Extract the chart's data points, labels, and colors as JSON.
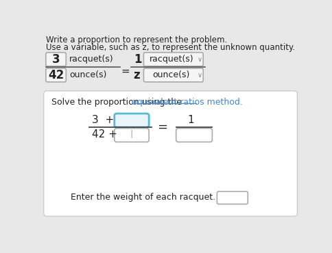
{
  "bg_color": "#e8e8e8",
  "bottom_section_bg": "#ffffff",
  "title_text1": "Write a proportion to represent the problem.",
  "title_text2": "Use a variable, such as z, to represent the unknown quantity.",
  "row1_left_num": "3",
  "row1_left_label": "racquet(s)",
  "row1_equals": "=",
  "row1_right_num": "1",
  "row1_right_label": "racquet(s)",
  "row2_left_num": "42",
  "row2_left_label": "ounce(s)",
  "row2_right_var": "z",
  "row2_right_label": "ounce(s)",
  "solve_text_plain": "Solve the proportion using the ",
  "solve_text_link": "equivalent ratios method.",
  "fraction_left_num": "3  +",
  "fraction_left_den": "42 +",
  "fraction_right_num": "1",
  "equals_sign": "=",
  "enter_text": "Enter the weight of each racquet.",
  "box_color_active_face": "#e8f6fb",
  "box_border_normal": "#aaaaaa",
  "box_border_active": "#5bb8d4",
  "text_color": "#222222",
  "link_color": "#4488cc",
  "cursor_text": "I"
}
